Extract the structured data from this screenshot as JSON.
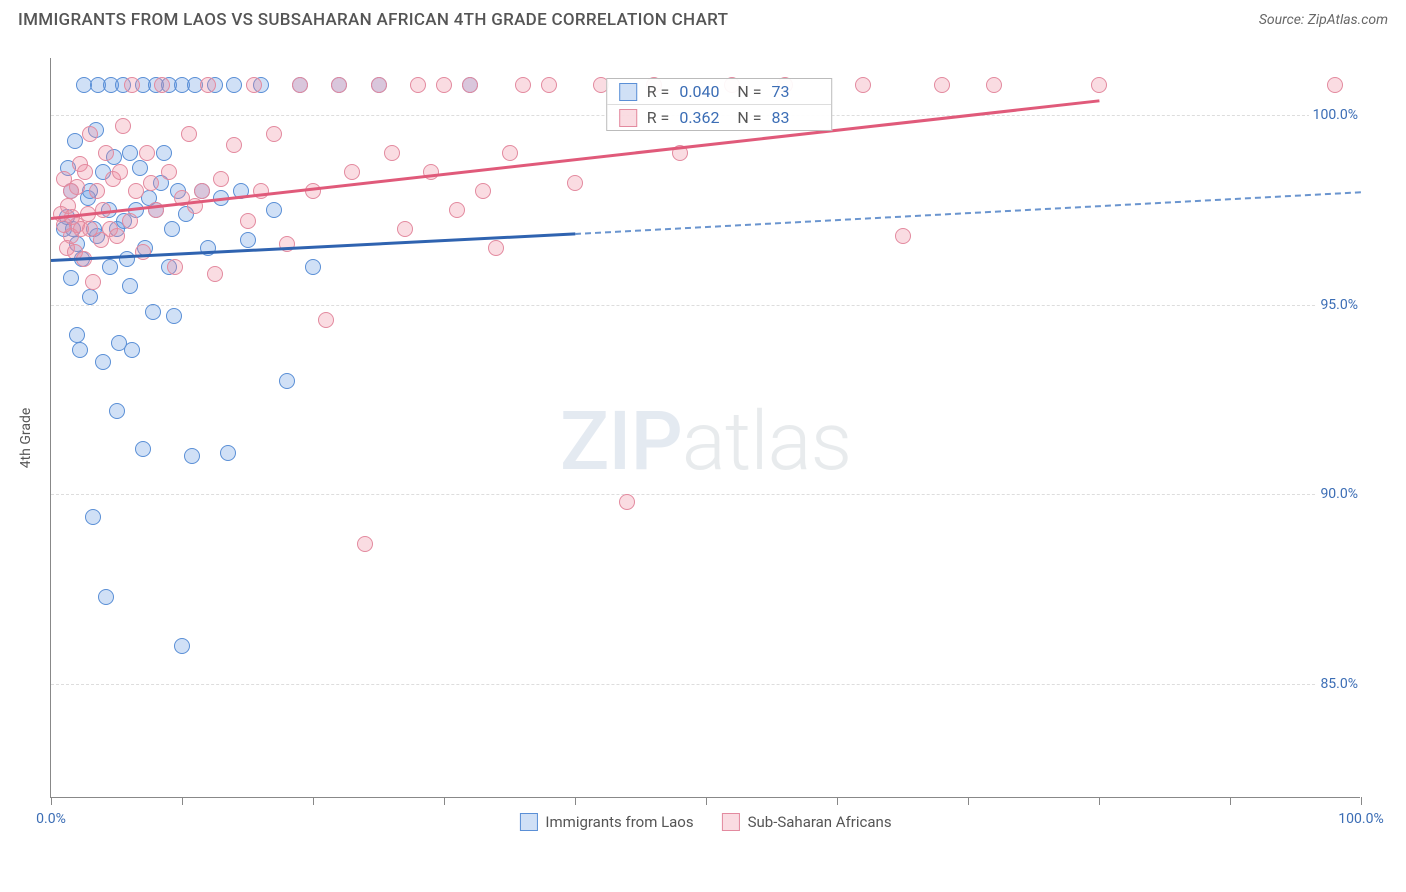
{
  "header": {
    "title": "IMMIGRANTS FROM LAOS VS SUBSAHARAN AFRICAN 4TH GRADE CORRELATION CHART",
    "source": "Source: ZipAtlas.com"
  },
  "chart": {
    "type": "scatter",
    "ylabel": "4th Grade",
    "xlim": [
      0,
      100
    ],
    "ylim": [
      82,
      101.5
    ],
    "yticks": [
      {
        "v": 85,
        "label": "85.0%"
      },
      {
        "v": 90,
        "label": "90.0%"
      },
      {
        "v": 95,
        "label": "95.0%"
      },
      {
        "v": 100,
        "label": "100.0%"
      }
    ],
    "xticks": [
      0,
      10,
      20,
      30,
      40,
      50,
      60,
      70,
      80,
      90,
      100
    ],
    "xlabels": [
      {
        "v": 0,
        "label": "0.0%"
      },
      {
        "v": 100,
        "label": "100.0%"
      }
    ],
    "background_color": "#ffffff",
    "grid_color": "#dddddd",
    "marker_radius": 8,
    "watermark": "ZIPatlas",
    "series": [
      {
        "key": "laos",
        "name": "Immigrants from Laos",
        "fill_color": "rgba(99,151,225,0.30)",
        "stroke_color": "#5a8fd6",
        "line_color": "#2f63b0",
        "dash_color": "#6a95cf",
        "r_label": "R =",
        "r_value": "0.040",
        "n_label": "N =",
        "n_value": "73",
        "trend": {
          "x0": 0,
          "y0": 96.2,
          "x1": 40,
          "y1": 96.9,
          "x2": 100,
          "y2": 98.0
        },
        "points": [
          [
            1,
            97
          ],
          [
            1.2,
            97.3
          ],
          [
            1.3,
            98.6
          ],
          [
            1.5,
            98.0
          ],
          [
            1.5,
            95.7
          ],
          [
            1.7,
            97.0
          ],
          [
            1.8,
            99.3
          ],
          [
            2,
            96.6
          ],
          [
            2,
            94.2
          ],
          [
            2.2,
            93.8
          ],
          [
            2.4,
            96.2
          ],
          [
            2.5,
            100.8
          ],
          [
            2.8,
            97.8
          ],
          [
            3,
            98.0
          ],
          [
            3,
            95.2
          ],
          [
            3.2,
            89.4
          ],
          [
            3.3,
            97.0
          ],
          [
            3.4,
            99.6
          ],
          [
            3.5,
            96.8
          ],
          [
            3.6,
            100.8
          ],
          [
            4,
            98.5
          ],
          [
            4,
            93.5
          ],
          [
            4.2,
            87.3
          ],
          [
            4.4,
            97.5
          ],
          [
            4.5,
            96.0
          ],
          [
            4.6,
            100.8
          ],
          [
            4.8,
            98.9
          ],
          [
            5,
            97.0
          ],
          [
            5,
            92.2
          ],
          [
            5.2,
            94.0
          ],
          [
            5.5,
            100.8
          ],
          [
            5.6,
            97.2
          ],
          [
            5.8,
            96.2
          ],
          [
            6,
            99.0
          ],
          [
            6,
            95.5
          ],
          [
            6.2,
            93.8
          ],
          [
            6.5,
            97.5
          ],
          [
            6.8,
            98.6
          ],
          [
            7,
            100.8
          ],
          [
            7,
            91.2
          ],
          [
            7.2,
            96.5
          ],
          [
            7.5,
            97.8
          ],
          [
            7.8,
            94.8
          ],
          [
            8,
            100.8
          ],
          [
            8,
            97.5
          ],
          [
            8.4,
            98.2
          ],
          [
            8.6,
            99.0
          ],
          [
            9,
            96.0
          ],
          [
            9,
            100.8
          ],
          [
            9.2,
            97.0
          ],
          [
            9.4,
            94.7
          ],
          [
            9.7,
            98.0
          ],
          [
            10,
            100.8
          ],
          [
            10,
            86.0
          ],
          [
            10.3,
            97.4
          ],
          [
            10.8,
            91.0
          ],
          [
            11,
            100.8
          ],
          [
            11.5,
            98.0
          ],
          [
            12,
            96.5
          ],
          [
            12.5,
            100.8
          ],
          [
            13,
            97.8
          ],
          [
            13.5,
            91.1
          ],
          [
            14,
            100.8
          ],
          [
            14.5,
            98.0
          ],
          [
            15,
            96.7
          ],
          [
            16,
            100.8
          ],
          [
            17,
            97.5
          ],
          [
            18,
            93.0
          ],
          [
            19,
            100.8
          ],
          [
            20,
            96.0
          ],
          [
            22,
            100.8
          ],
          [
            25,
            100.8
          ],
          [
            32,
            100.8
          ]
        ]
      },
      {
        "key": "ssa",
        "name": "Sub-Saharan Africans",
        "fill_color": "rgba(238,140,160,0.30)",
        "stroke_color": "#e38a9f",
        "line_color": "#e05a7a",
        "r_label": "R =",
        "r_value": "0.362",
        "n_label": "N =",
        "n_value": "83",
        "trend": {
          "x0": 0,
          "y0": 97.3,
          "x1": 80,
          "y1": 100.4
        },
        "points": [
          [
            0.8,
            97.4
          ],
          [
            1,
            97.1
          ],
          [
            1,
            98.3
          ],
          [
            1.2,
            96.5
          ],
          [
            1.3,
            97.6
          ],
          [
            1.5,
            98.0
          ],
          [
            1.5,
            96.8
          ],
          [
            1.6,
            97.3
          ],
          [
            1.8,
            96.4
          ],
          [
            2,
            97.1
          ],
          [
            2,
            98.1
          ],
          [
            2.2,
            98.7
          ],
          [
            2.3,
            97.0
          ],
          [
            2.5,
            96.2
          ],
          [
            2.6,
            98.5
          ],
          [
            2.8,
            97.4
          ],
          [
            3,
            99.5
          ],
          [
            3,
            97.0
          ],
          [
            3.2,
            95.6
          ],
          [
            3.5,
            98.0
          ],
          [
            3.8,
            96.7
          ],
          [
            4,
            97.5
          ],
          [
            4.2,
            99.0
          ],
          [
            4.5,
            97.0
          ],
          [
            4.7,
            98.3
          ],
          [
            5,
            96.8
          ],
          [
            5.3,
            98.5
          ],
          [
            5.5,
            99.7
          ],
          [
            6,
            97.2
          ],
          [
            6.2,
            100.8
          ],
          [
            6.5,
            98.0
          ],
          [
            7,
            96.4
          ],
          [
            7.3,
            99.0
          ],
          [
            7.6,
            98.2
          ],
          [
            8,
            97.5
          ],
          [
            8.5,
            100.8
          ],
          [
            9,
            98.5
          ],
          [
            9.5,
            96.0
          ],
          [
            10,
            97.8
          ],
          [
            10.5,
            99.5
          ],
          [
            11,
            97.6
          ],
          [
            11.5,
            98.0
          ],
          [
            12,
            100.8
          ],
          [
            12.5,
            95.8
          ],
          [
            13,
            98.3
          ],
          [
            14,
            99.2
          ],
          [
            15,
            97.2
          ],
          [
            15.5,
            100.8
          ],
          [
            16,
            98.0
          ],
          [
            17,
            99.5
          ],
          [
            18,
            96.6
          ],
          [
            19,
            100.8
          ],
          [
            20,
            98.0
          ],
          [
            21,
            94.6
          ],
          [
            22,
            100.8
          ],
          [
            23,
            98.5
          ],
          [
            24,
            88.7
          ],
          [
            25,
            100.8
          ],
          [
            26,
            99.0
          ],
          [
            27,
            97.0
          ],
          [
            28,
            100.8
          ],
          [
            29,
            98.5
          ],
          [
            30,
            100.8
          ],
          [
            31,
            97.5
          ],
          [
            32,
            100.8
          ],
          [
            33,
            98.0
          ],
          [
            34,
            96.5
          ],
          [
            35,
            99.0
          ],
          [
            36,
            100.8
          ],
          [
            38,
            100.8
          ],
          [
            40,
            98.2
          ],
          [
            42,
            100.8
          ],
          [
            44,
            89.8
          ],
          [
            46,
            100.8
          ],
          [
            48,
            99.0
          ],
          [
            52,
            100.8
          ],
          [
            56,
            100.8
          ],
          [
            62,
            100.8
          ],
          [
            65,
            96.8
          ],
          [
            68,
            100.8
          ],
          [
            72,
            100.8
          ],
          [
            80,
            100.8
          ],
          [
            98,
            100.8
          ]
        ]
      }
    ]
  }
}
